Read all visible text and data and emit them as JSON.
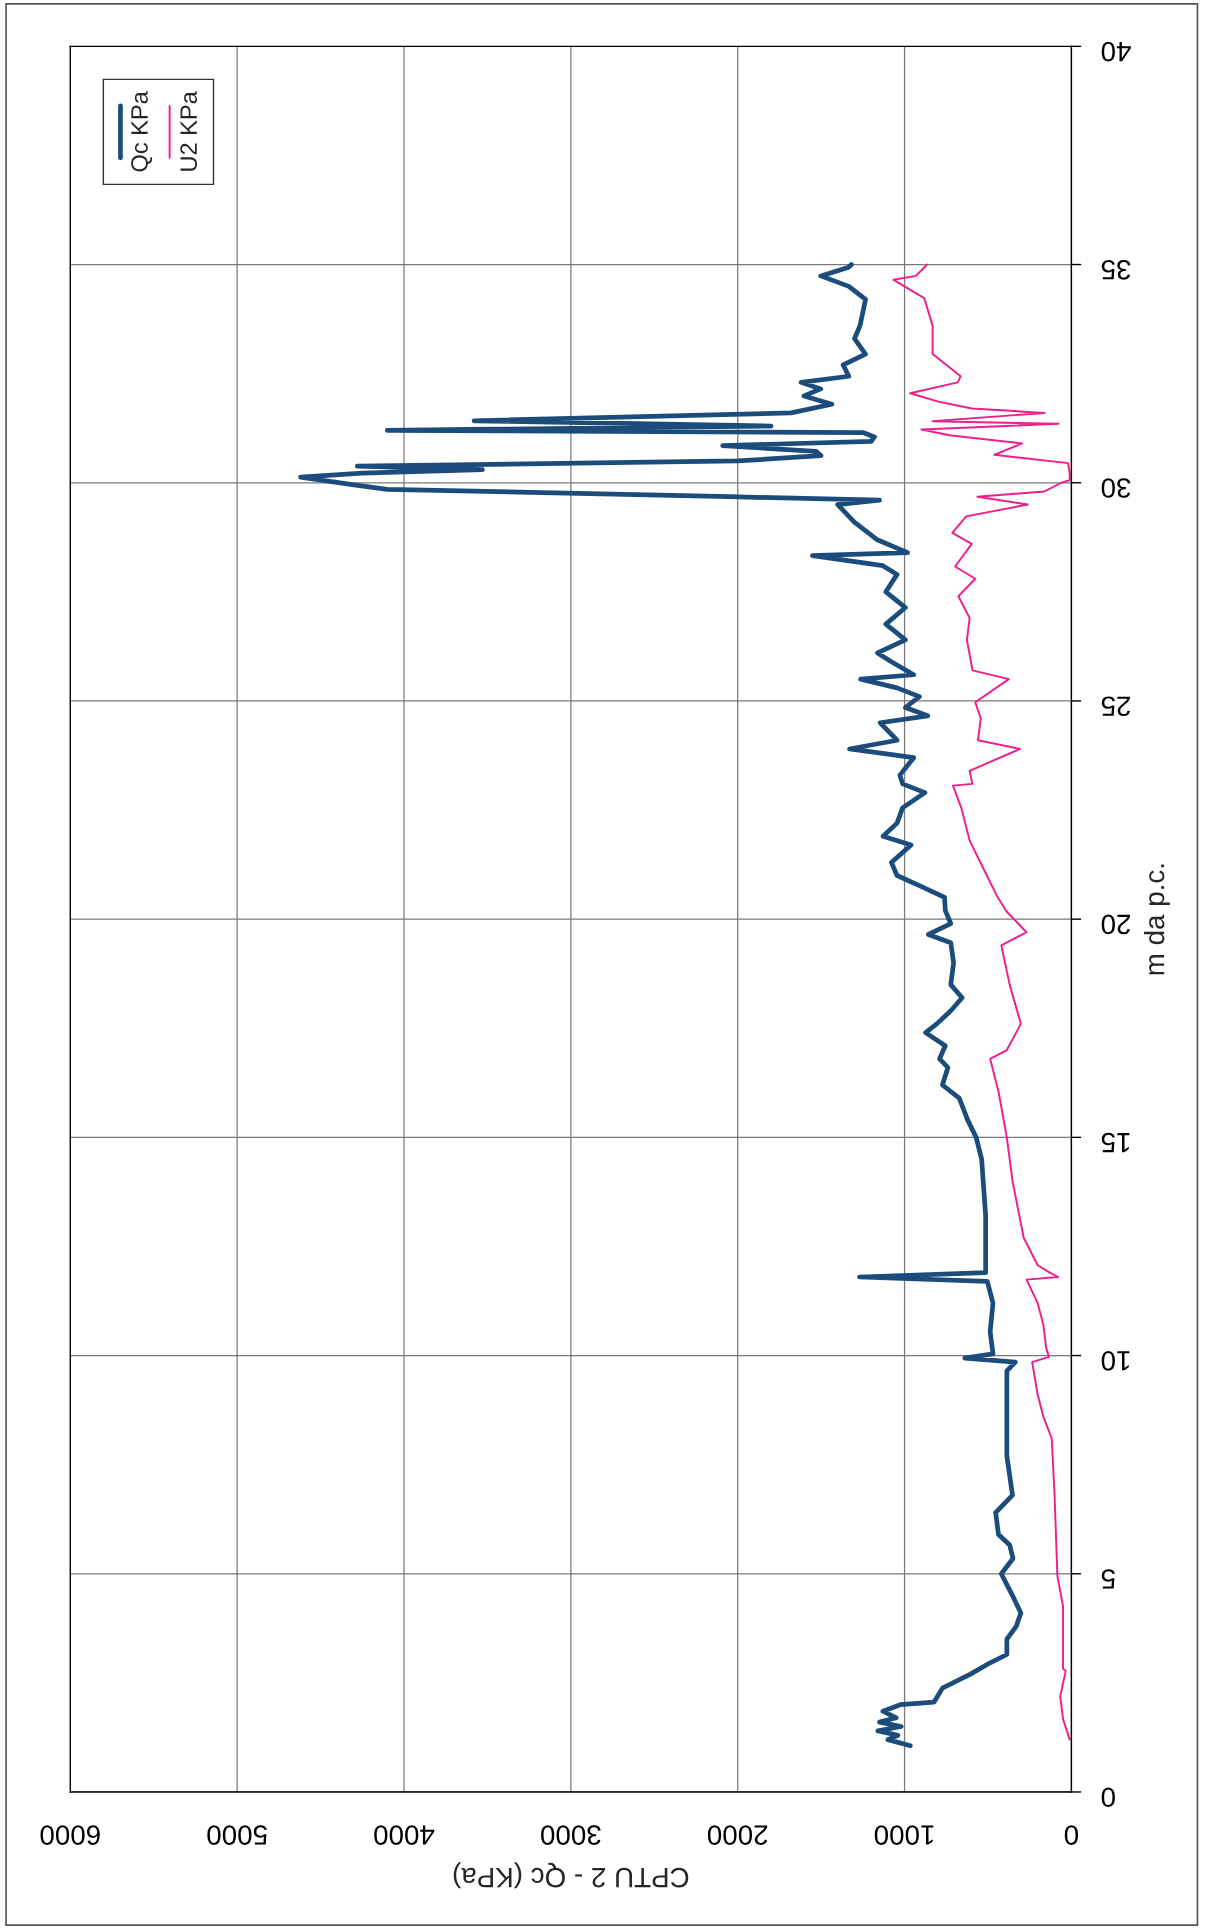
{
  "chart_data": {
    "type": "line",
    "xlabel": "CPTU 2 - Qc (KPa)",
    "ylabel": "m da p.c.",
    "xlim": [
      6000,
      0
    ],
    "xticks": [
      0,
      1000,
      2000,
      3000,
      4000,
      5000,
      6000
    ],
    "ylim": [
      0,
      40
    ],
    "yticks": [
      0,
      5,
      10,
      15,
      20,
      25,
      30,
      35,
      40
    ],
    "grid": true,
    "legend": "top left",
    "series": [
      {
        "name": "Qc KPa",
        "color": "#1c4c7c",
        "x": [
          965,
          1100,
          1040,
          1160,
          1020,
          1150,
          1050,
          1130,
          1025,
          823,
          773,
          605,
          487,
          387,
          387,
          330,
          303,
          353,
          420,
          350,
          370,
          437,
          454,
          353,
          387,
          387,
          387,
          336,
          639,
          470,
          487,
          470,
          504,
          1270,
          514,
          514,
          538,
          571,
          622,
          672,
          773,
          740,
          790,
          756,
          874,
          807,
          723,
          655,
          723,
          706,
          723,
          857,
          723,
          756,
          760,
          911,
          1045,
          1079,
          961,
          1129,
          1045,
          1012,
          878,
          1012,
          1028,
          945,
          1330,
          1045,
          1146,
          861,
          995,
          911,
          1045,
          1263,
          945,
          1079,
          1162,
          995,
          1112,
          995,
          1112,
          1045,
          1130,
          1552,
          982,
          1167,
          1301,
          1401,
          1150,
          2050,
          4100,
          4300,
          4620,
          4250,
          3530,
          4280,
          2000,
          1500,
          1530,
          2090,
          1200,
          1180,
          1250,
          4100,
          1800,
          3580,
          1680,
          1435,
          1603,
          1502,
          1620,
          1334,
          1368,
          1234,
          1300,
          1267,
          1234,
          1334,
          1502,
          1334,
          1318
        ],
        "values": [
          1.06,
          1.2,
          1.3,
          1.4,
          1.5,
          1.6,
          1.7,
          1.85,
          2.0,
          2.06,
          2.38,
          2.7,
          2.96,
          3.15,
          3.5,
          3.8,
          4.1,
          4.5,
          5.0,
          5.35,
          5.66,
          5.9,
          6.4,
          6.8,
          7.7,
          8.75,
          9.65,
          9.85,
          9.94,
          10.04,
          10.55,
          11.2,
          11.7,
          11.8,
          11.9,
          13.2,
          14.5,
          15.0,
          15.4,
          15.9,
          16.2,
          16.6,
          16.8,
          17.1,
          17.4,
          17.6,
          17.9,
          18.2,
          18.5,
          19.0,
          19.46,
          19.65,
          19.9,
          20.2,
          20.5,
          20.77,
          21.0,
          21.3,
          21.7,
          21.9,
          22.2,
          22.55,
          22.9,
          23.1,
          23.3,
          23.7,
          23.9,
          24.1,
          24.5,
          24.66,
          24.85,
          25.1,
          25.3,
          25.5,
          25.6,
          25.9,
          26.1,
          26.4,
          26.76,
          27.14,
          27.5,
          27.9,
          28.1,
          28.33,
          28.4,
          28.7,
          29.1,
          29.5,
          29.6,
          29.68,
          29.85,
          29.95,
          30.13,
          30.22,
          30.3,
          30.38,
          30.5,
          30.62,
          30.72,
          30.85,
          30.95,
          31.05,
          31.15,
          31.2,
          31.3,
          31.42,
          31.6,
          31.8,
          31.99,
          32.15,
          32.3,
          32.44,
          32.7,
          32.95,
          33.3,
          33.6,
          34.2,
          34.5,
          34.74,
          34.94,
          35.0
        ]
      },
      {
        "name": "U2 KPa",
        "color": "#ee1f8b",
        "x": [
          10,
          50,
          67,
          34,
          50,
          50,
          84,
          101,
          118,
          168,
          202,
          235,
          134,
          151,
          168,
          202,
          269,
          80,
          130,
          202,
          286,
          353,
          387,
          437,
          487,
          387,
          303,
          370,
          420,
          269,
          319,
          387,
          442,
          526,
          610,
          660,
          710,
          593,
          610,
          308,
          560,
          543,
          576,
          375,
          593,
          626,
          610,
          677,
          576,
          697,
          597,
          714,
          630,
          262,
          563,
          161,
          60,
          10,
          10,
          20,
          463,
          295,
          731,
          899,
          77,
          832,
          161,
          597,
          798,
          966,
          681,
          664,
          832,
          832,
          882,
          1066,
          932,
          865
        ],
        "values": [
          1.2,
          1.67,
          2.19,
          2.77,
          2.83,
          4.25,
          4.95,
          6.82,
          8.1,
          8.6,
          9.1,
          9.85,
          9.97,
          10.17,
          10.7,
          11.2,
          11.74,
          11.8,
          11.9,
          12.07,
          12.7,
          14.0,
          15.0,
          16.05,
          16.8,
          17.0,
          17.6,
          18.5,
          19.4,
          19.7,
          19.9,
          20.17,
          20.5,
          21.15,
          21.8,
          22.55,
          23.06,
          23.1,
          23.4,
          23.9,
          24.1,
          24.6,
          24.97,
          25.5,
          25.7,
          26.4,
          26.9,
          27.4,
          27.8,
          28.08,
          28.6,
          28.85,
          29.23,
          29.5,
          29.68,
          29.8,
          30.0,
          30.06,
          30.2,
          30.45,
          30.64,
          30.9,
          31.09,
          31.22,
          31.35,
          31.41,
          31.6,
          31.7,
          31.86,
          32.05,
          32.3,
          32.44,
          32.95,
          33.6,
          34.23,
          34.65,
          34.74,
          35.0
        ]
      }
    ]
  }
}
